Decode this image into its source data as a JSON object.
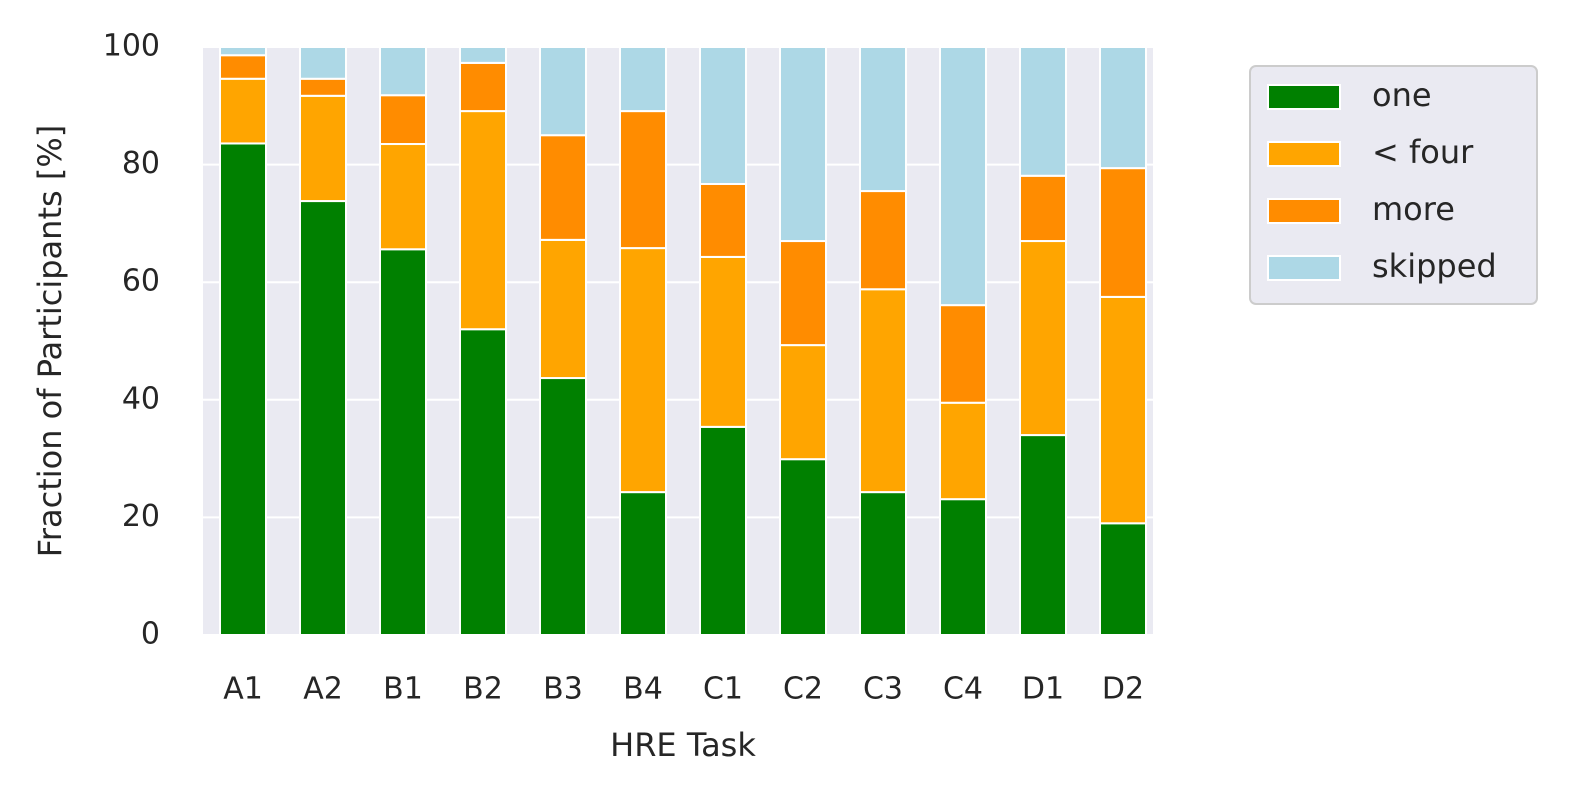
{
  "chart_data": {
    "type": "stacked_bar",
    "x_label": "HRE Task",
    "y_label": "Fraction of Participants [%]",
    "categories": [
      "A1",
      "A2",
      "B1",
      "B2",
      "B3",
      "B4",
      "C1",
      "C2",
      "C3",
      "C4",
      "D1",
      "D2"
    ],
    "series": [
      {
        "name": "one",
        "color": "#008000",
        "values": [
          83.6,
          73.8,
          65.6,
          52.0,
          43.7,
          24.3,
          35.4,
          29.9,
          24.3,
          23.1,
          34.0,
          19.0
        ]
      },
      {
        "name": "< four",
        "color": "#ffa500",
        "values": [
          11.0,
          17.9,
          17.9,
          37.1,
          23.5,
          41.5,
          28.9,
          19.4,
          34.5,
          16.4,
          33.0,
          38.5
        ]
      },
      {
        "name": "more",
        "color": "#ff8c00",
        "values": [
          4.0,
          2.9,
          8.3,
          8.2,
          17.8,
          23.3,
          12.4,
          17.7,
          16.7,
          16.6,
          11.1,
          21.9
        ]
      },
      {
        "name": "skipped",
        "color": "#add8e6",
        "values": [
          1.4,
          5.4,
          8.2,
          2.7,
          15.0,
          10.9,
          23.3,
          33.0,
          24.5,
          43.9,
          21.9,
          20.6
        ]
      }
    ],
    "ylim": [
      0,
      100
    ],
    "yticks": [
      0,
      20,
      40,
      60,
      80,
      100
    ],
    "grid": true,
    "legend": "outside right"
  }
}
